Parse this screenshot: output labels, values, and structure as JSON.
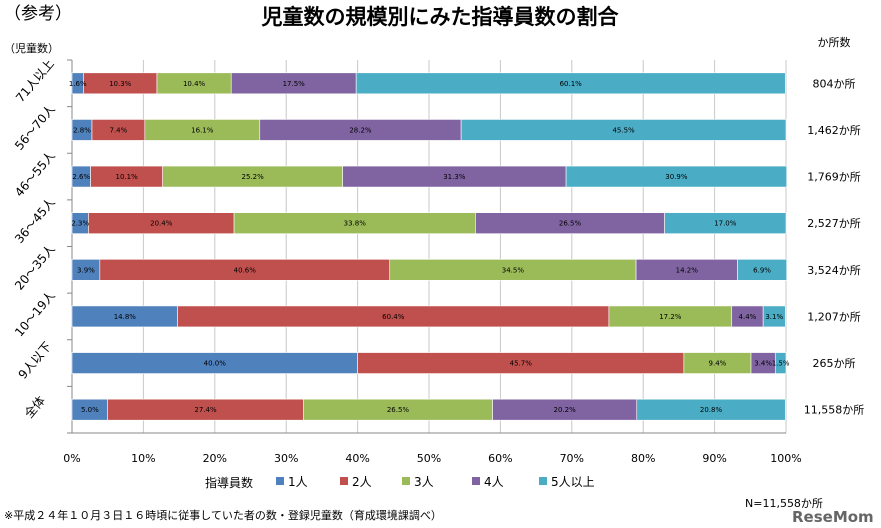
{
  "header": {
    "tag": "（参考）",
    "title": "児童数の規模別にみた指導員数の割合",
    "ylabel": "（児童数）",
    "count_header": "か所数"
  },
  "footer": {
    "note": "※平成２４年１０月３日１６時頃に従事していた者の数・登録児童数（育成環境課調べ）",
    "n_label": "N=11,558か所",
    "watermark": "ReseMom"
  },
  "chart_data": {
    "type": "bar",
    "orientation": "horizontal",
    "stacked": true,
    "percent_stacked": true,
    "title": "児童数の規模別にみた指導員数の割合",
    "ylabel": "（児童数）",
    "xlim": [
      0,
      100
    ],
    "x_ticks": [
      "0%",
      "10%",
      "20%",
      "30%",
      "40%",
      "50%",
      "60%",
      "70%",
      "80%",
      "90%",
      "100%"
    ],
    "legend_title": "指導員数",
    "legend_position": "bottom",
    "grid": "vertical",
    "categories": [
      "71人以上",
      "56～70人",
      "46～55人",
      "36～45人",
      "20～35人",
      "10～19人",
      "9人以下",
      "全体"
    ],
    "counts": [
      "804か所",
      "1,462か所",
      "1,769か所",
      "2,527か所",
      "3,524か所",
      "1,207か所",
      "265か所",
      "11,558か所"
    ],
    "series": [
      {
        "name": "1人",
        "color": "#4f81bd",
        "values": [
          1.6,
          2.8,
          2.6,
          2.3,
          3.9,
          14.8,
          40.0,
          5.0
        ],
        "labels": [
          "1.6%",
          "2.8%",
          "2.6%",
          "2.3%",
          "3.9%",
          "14.8%",
          "40.0%",
          "5.0%"
        ]
      },
      {
        "name": "2人",
        "color": "#c0504d",
        "values": [
          10.3,
          7.4,
          10.1,
          20.4,
          40.6,
          60.4,
          45.7,
          27.4
        ],
        "labels": [
          "10.3%",
          "7.4%",
          "10.1%",
          "20.4%",
          "40.6%",
          "60.4%",
          "45.7%",
          "27.4%"
        ]
      },
      {
        "name": "3人",
        "color": "#9bbb59",
        "values": [
          10.4,
          16.1,
          25.2,
          33.8,
          34.5,
          17.2,
          9.4,
          26.5
        ],
        "labels": [
          "10.4%",
          "16.1%",
          "25.2%",
          "33.8%",
          "34.5%",
          "17.2%",
          "9.4%",
          "26.5%"
        ]
      },
      {
        "name": "4人",
        "color": "#8064a2",
        "values": [
          17.5,
          28.2,
          31.3,
          26.5,
          14.2,
          4.4,
          3.4,
          20.2
        ],
        "labels": [
          "17.5%",
          "28.2%",
          "31.3%",
          "26.5%",
          "14.2%",
          "4.4%",
          "3.4%",
          "20.2%"
        ]
      },
      {
        "name": "5人以上",
        "color": "#4bacc6",
        "values": [
          60.1,
          45.5,
          30.9,
          17.0,
          6.9,
          3.1,
          1.5,
          20.8
        ],
        "labels": [
          "60.1%",
          "45.5%",
          "30.9%",
          "17.0%",
          "6.9%",
          "3.1%",
          "1.5%",
          "20.8%"
        ]
      }
    ]
  }
}
